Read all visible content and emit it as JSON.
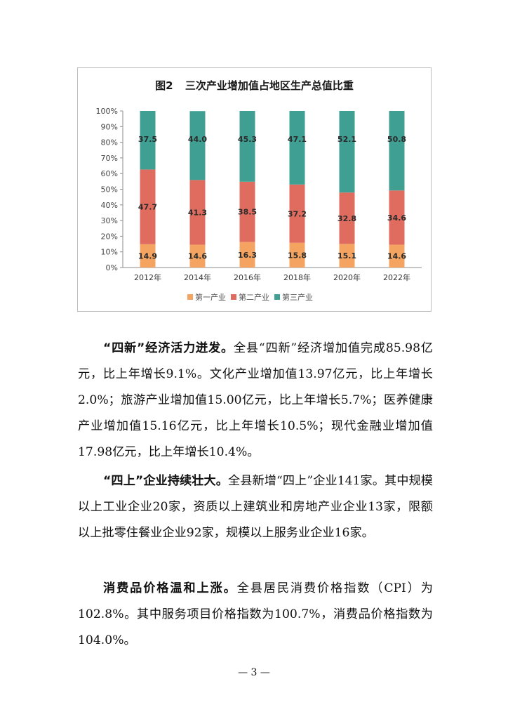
{
  "chart_data": {
    "type": "bar",
    "stacked": true,
    "title_prefix": "图2",
    "title": "三次产业增加值占地区生产总值比重",
    "categories": [
      "2012年",
      "2014年",
      "2016年",
      "2018年",
      "2020年",
      "2022年"
    ],
    "series": [
      {
        "name": "第一产业",
        "color": "#f4a460",
        "values": [
          14.9,
          14.6,
          16.3,
          15.8,
          15.1,
          14.6
        ]
      },
      {
        "name": "第二产业",
        "color": "#e06b5f",
        "values": [
          47.7,
          41.3,
          38.5,
          37.2,
          32.8,
          34.6
        ]
      },
      {
        "name": "第三产业",
        "color": "#3f9f93",
        "values": [
          37.5,
          44.0,
          45.3,
          47.1,
          52.1,
          50.8
        ]
      }
    ],
    "yticks": [
      "0%",
      "10%",
      "20%",
      "30%",
      "40%",
      "50%",
      "60%",
      "70%",
      "80%",
      "90%",
      "100%"
    ],
    "ylim": [
      0,
      100
    ],
    "legend_position": "bottom",
    "grid": false
  },
  "paragraphs": [
    {
      "lead": "“四新”经济活力迸发。",
      "text": "全县“四新”经济增加值完成85.98亿元，比上年增长9.1%。文化产业增加值13.97亿元，比上年增长2.0%；旅游产业增加值15.00亿元，比上年增长5.7%；医养健康产业增加值15.16亿元，比上年增长10.5%；现代金融业增加值17.98亿元，比上年增长10.4%。"
    },
    {
      "lead": "“四上”企业持续壮大。",
      "text": "全县新增“四上”企业141家。其中规模以上工业企业20家，资质以上建筑业和房地产业企业13家，限额以上批零住餐业企业92家，规模以上服务业企业16家。"
    },
    {
      "lead": "消费品价格温和上涨。",
      "text": "全县居民消费价格指数（CPI）为102.8%。其中服务项目价格指数为100.7%，消费品价格指数为104.0%。"
    }
  ],
  "page_number": "— 3 —"
}
